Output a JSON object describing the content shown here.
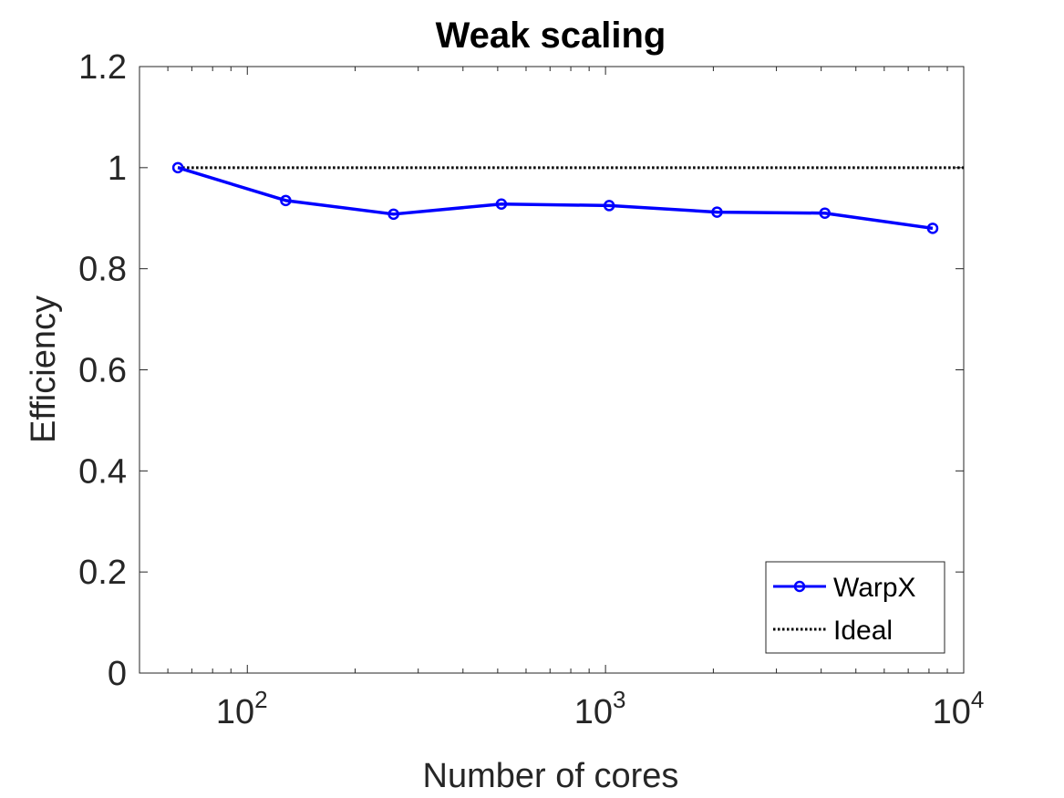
{
  "chart_data": {
    "type": "line",
    "title": "Weak scaling",
    "xlabel": "Number of cores",
    "ylabel": "Efficiency",
    "xscale": "log",
    "xlim": [
      50,
      10000
    ],
    "ylim": [
      0,
      1.2
    ],
    "xticks": [
      {
        "value": 100,
        "base": "10",
        "exp": "2"
      },
      {
        "value": 1000,
        "base": "10",
        "exp": "3"
      },
      {
        "value": 10000,
        "base": "10",
        "exp": "4"
      }
    ],
    "yticks": [
      {
        "value": 0,
        "label": "0"
      },
      {
        "value": 0.2,
        "label": "0.2"
      },
      {
        "value": 0.4,
        "label": "0.4"
      },
      {
        "value": 0.6,
        "label": "0.6"
      },
      {
        "value": 0.8,
        "label": "0.8"
      },
      {
        "value": 1,
        "label": "1"
      },
      {
        "value": 1.2,
        "label": "1.2"
      }
    ],
    "grid": false,
    "legend_position": "bottom-right",
    "series": [
      {
        "name": "WarpX",
        "color": "#0000ff",
        "marker": "circle",
        "x": [
          64,
          128,
          256,
          512,
          1024,
          2048,
          4096,
          8192
        ],
        "y": [
          1.0,
          0.935,
          0.908,
          0.928,
          0.925,
          0.912,
          0.91,
          0.88
        ]
      },
      {
        "name": "Ideal",
        "color": "#000000",
        "style": "dotted",
        "x": [
          64,
          10000
        ],
        "y": [
          1.0,
          1.0
        ]
      }
    ]
  }
}
